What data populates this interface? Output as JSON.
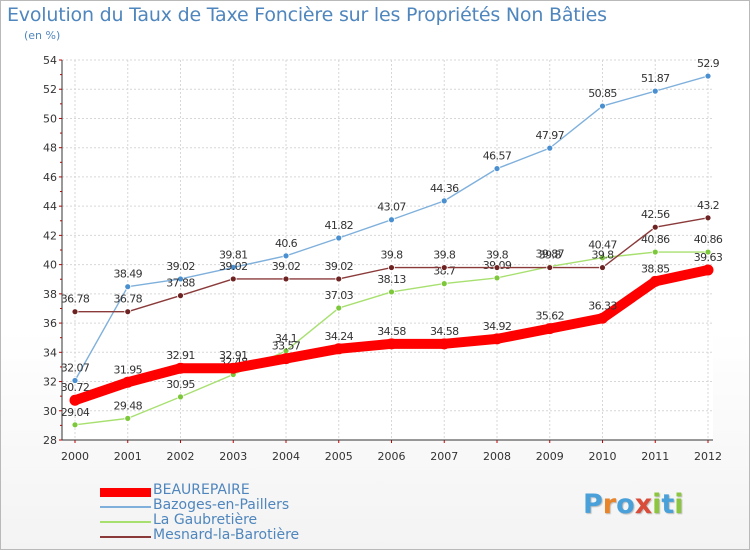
{
  "header": {
    "title": "Evolution du Taux de Taxe Foncière sur les Propriétés Non Bâties",
    "unit": "(en %)"
  },
  "logo": {
    "text": "Proxiti",
    "letters": [
      {
        "ch": "P",
        "color": "#4aa0d8"
      },
      {
        "ch": "r",
        "color": "#e8842a"
      },
      {
        "ch": "o",
        "color": "#4aa0d8"
      },
      {
        "ch": "x",
        "color": "#d94c3a"
      },
      {
        "ch": "i",
        "color": "#8cc63f"
      },
      {
        "ch": "t",
        "color": "#4aa0d8"
      },
      {
        "ch": "i",
        "color": "#8cc63f"
      }
    ]
  },
  "chart_data": {
    "type": "line",
    "title": "Evolution du Taux de Taxe Foncière sur les Propriétés Non Bâties",
    "ylabel": "(en %)",
    "xlabel": "",
    "ylim": [
      28,
      54
    ],
    "yticks": [
      28,
      30,
      32,
      34,
      36,
      38,
      40,
      42,
      44,
      46,
      48,
      50,
      52,
      54
    ],
    "categories": [
      "2000",
      "2001",
      "2002",
      "2003",
      "2004",
      "2005",
      "2006",
      "2007",
      "2008",
      "2009",
      "2010",
      "2011",
      "2012"
    ],
    "grid": true,
    "series": [
      {
        "name": "Bazoges-en-Paillers",
        "color": "#7fb0dc",
        "marker": "#4a8fd0",
        "values": [
          32.07,
          38.49,
          39.02,
          39.81,
          40.6,
          41.82,
          43.07,
          44.36,
          46.57,
          47.97,
          50.85,
          51.87,
          52.9
        ],
        "labels": [
          "32.07",
          "38.49",
          "39.02",
          "39.81",
          "40.6",
          "41.82",
          "43.07",
          "44.36",
          "46.57",
          "47.97",
          "50.85",
          "51.87",
          "52.9"
        ]
      },
      {
        "name": "La Gaubretière",
        "color": "#a8e070",
        "marker": "#7cc83a",
        "values": [
          29.04,
          29.48,
          30.95,
          32.48,
          34.1,
          37.03,
          38.13,
          38.7,
          39.09,
          39.87,
          40.47,
          40.86,
          40.86
        ],
        "labels": [
          "29.04",
          "29.48",
          "30.95",
          "32.48",
          "34.1",
          "37.03",
          "38.13",
          "38.7",
          "39.09",
          "39.87",
          "40.47",
          "40.86",
          "40.86"
        ]
      },
      {
        "name": "Mesnard-la-Barotière",
        "color": "#8b3a3a",
        "marker": "#6e2323",
        "values": [
          36.78,
          36.78,
          37.88,
          39.02,
          39.02,
          39.02,
          39.8,
          39.8,
          39.8,
          39.8,
          39.8,
          42.56,
          43.2
        ],
        "labels": [
          "36.78",
          "36.78",
          "37.88",
          "39.02",
          "39.02",
          "39.02",
          "39.8",
          "39.8",
          "39.8",
          "39.8",
          "39.8",
          "42.56",
          "43.2"
        ]
      },
      {
        "name": "BEAUREPAIRE",
        "color": "#ff0000",
        "marker": "#ff0000",
        "values": [
          30.72,
          31.95,
          32.91,
          32.91,
          33.57,
          34.24,
          34.58,
          34.58,
          34.92,
          35.62,
          36.33,
          38.85,
          39.63
        ],
        "labels": [
          "30.72",
          "31.95",
          "32.91",
          "32.91",
          "33.57",
          "34.24",
          "34.58",
          "34.58",
          "34.92",
          "35.62",
          "36.33",
          "38.85",
          "39.63"
        ]
      }
    ],
    "legend": {
      "position": "bottom-left",
      "order": [
        "BEAUREPAIRE",
        "Bazoges-en-Paillers",
        "La Gaubretière",
        "Mesnard-la-Barotière"
      ]
    }
  }
}
